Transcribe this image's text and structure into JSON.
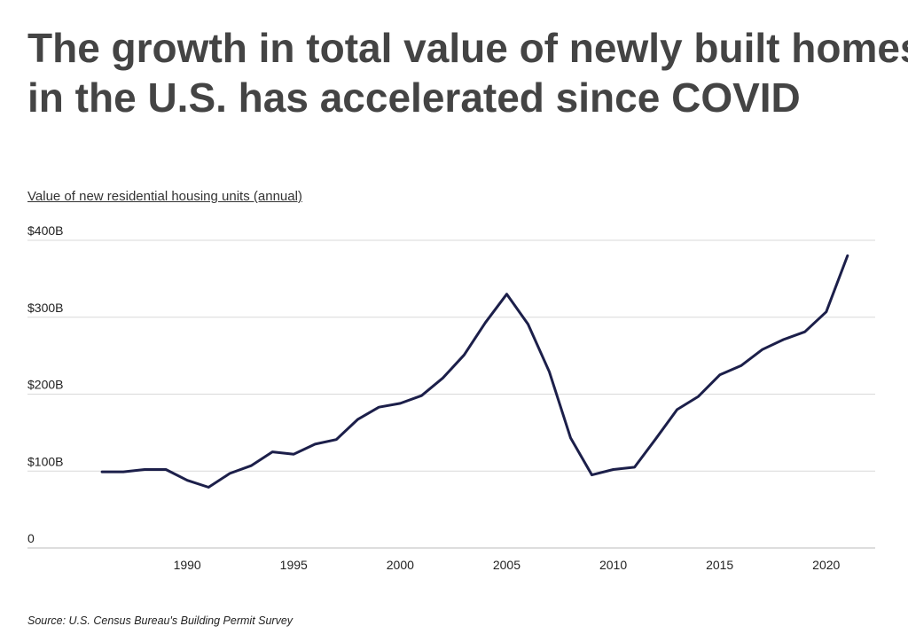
{
  "title_lines": [
    "The growth in total value of newly built homes",
    "in the U.S. has accelerated since COVID"
  ],
  "subtitle": "Value of new residential housing units (annual)",
  "source": "Source:  U.S. Census Bureau's Building Permit Survey",
  "colors": {
    "line": "#1c1f4a",
    "grid": "#d9d9d9",
    "axis": "#bbbbbb",
    "title": "#444444"
  },
  "chart_data": {
    "type": "line",
    "title": "The growth in total value of newly built homes in the U.S. has accelerated since COVID",
    "xlabel": "",
    "ylabel": "Value of new residential housing units (annual)",
    "xlim": [
      1982.5,
      2022.3
    ],
    "ylim": [
      0,
      400
    ],
    "grid": true,
    "x_ticks": [
      1990,
      1995,
      2000,
      2005,
      2010,
      2015,
      2020
    ],
    "x_tick_labels": [
      "1990",
      "1995",
      "2000",
      "2005",
      "2010",
      "2015",
      "2020"
    ],
    "y_ticks": [
      0,
      100,
      200,
      300,
      400
    ],
    "y_tick_labels": [
      "0",
      "$100B",
      "$200B",
      "$300B",
      "$400B"
    ],
    "series": [
      {
        "name": "Value of new residential housing units",
        "x": [
          1986,
          1987,
          1988,
          1989,
          1990,
          1991,
          1992,
          1993,
          1994,
          1995,
          1996,
          1997,
          1998,
          1999,
          2000,
          2001,
          2002,
          2003,
          2004,
          2005,
          2006,
          2007,
          2008,
          2009,
          2010,
          2011,
          2012,
          2013,
          2014,
          2015,
          2016,
          2017,
          2018,
          2019,
          2020,
          2021
        ],
        "values": [
          99,
          99,
          102,
          102,
          88,
          79,
          97,
          107,
          125,
          122,
          135,
          141,
          167,
          183,
          188,
          198,
          221,
          251,
          293,
          330,
          291,
          229,
          143,
          95,
          102,
          105,
          142,
          180,
          197,
          225,
          237,
          258,
          271,
          281,
          307,
          380
        ]
      }
    ]
  }
}
